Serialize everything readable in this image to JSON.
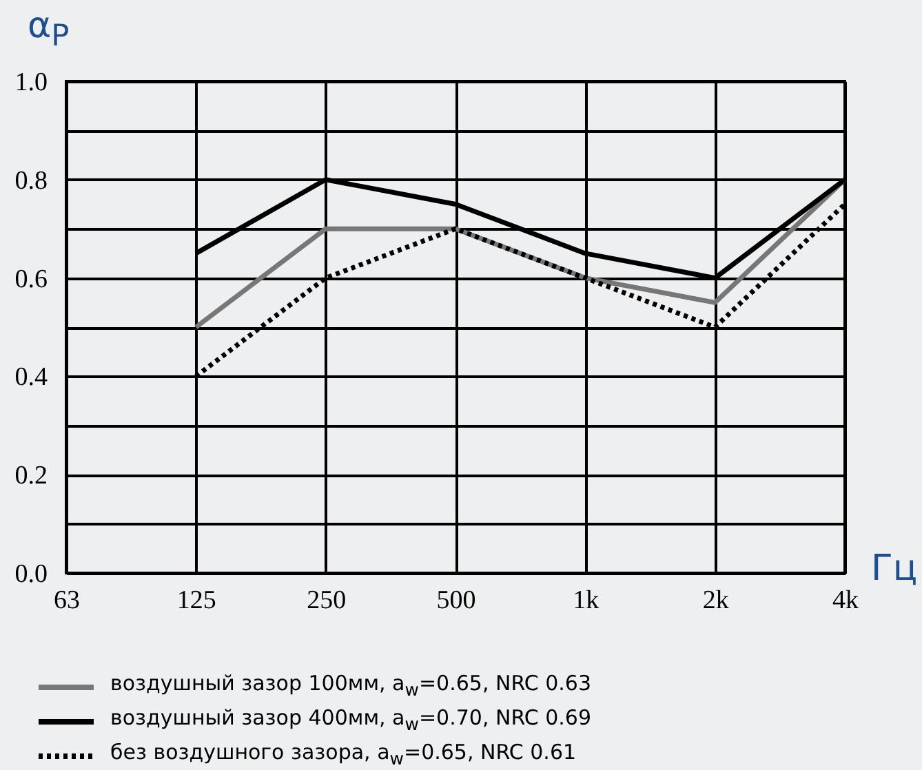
{
  "chart_data": {
    "type": "line",
    "ylabel": "α$_{P}$",
    "xlabel": "Гц",
    "categories": [
      "63",
      "125",
      "250",
      "500",
      "1k",
      "2k",
      "4k"
    ],
    "ylim": [
      0,
      1
    ],
    "yticks": [
      {
        "value": 0,
        "label": "0.0"
      },
      {
        "value": 0.1,
        "label": null
      },
      {
        "value": 0.2,
        "label": "0.2"
      },
      {
        "value": 0.3,
        "label": null
      },
      {
        "value": 0.4,
        "label": "0.4"
      },
      {
        "value": 0.5,
        "label": null
      },
      {
        "value": 0.6,
        "label": "0.6"
      },
      {
        "value": 0.7,
        "label": null
      },
      {
        "value": 0.8,
        "label": "0.8"
      },
      {
        "value": 0.9,
        "label": null
      },
      {
        "value": 1,
        "label": "1.0"
      }
    ],
    "grid": true,
    "legend": "bottom",
    "marker": "none",
    "series": [
      {
        "name": "воздушный зазор 100мм, a$_{w}$=0.65, NRC 0.63",
        "color": "#777777",
        "line_style": "solid",
        "values": [
          null,
          0.5,
          0.7,
          0.7,
          0.6,
          0.55,
          0.8
        ]
      },
      {
        "name": "воздушный зазор 400мм, a$_{w}$=0.70, NRC 0.69",
        "color": "#000000",
        "line_style": "solid",
        "values": [
          null,
          0.65,
          0.8,
          0.75,
          0.65,
          0.6,
          0.8
        ]
      },
      {
        "name": "без воздушного зазора, a$_{w}$=0.65, NRC 0.61",
        "color": "#000000",
        "line_style": "dotted",
        "values": [
          null,
          0.4,
          0.6,
          0.7,
          0.6,
          0.5,
          0.75
        ]
      }
    ]
  }
}
